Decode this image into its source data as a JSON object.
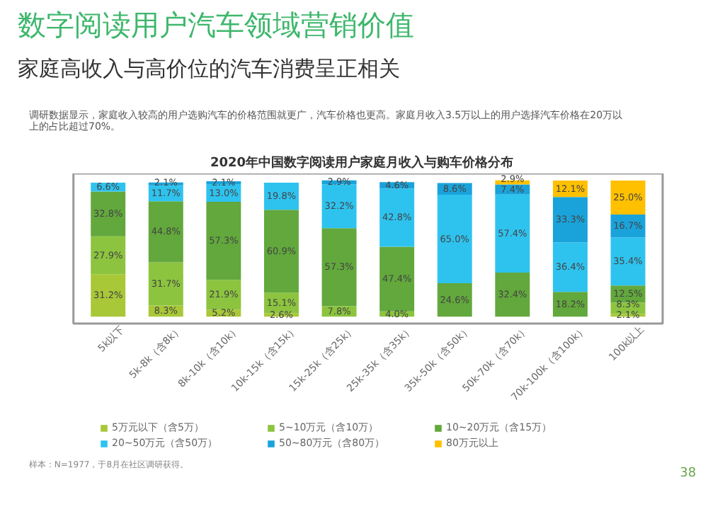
{
  "chart_data": {
    "type": "bar",
    "stacked": true,
    "title": "2020年中国数字阅读用户家庭月收入与购车价格分布",
    "annotations": [
      "数字阅读用户汽车领域营销价值",
      "家庭高收入与高价位的汽车消费呈正相关",
      "调研数据显示，家庭收入较高的用户选购汽车的价格范围就更广，汽车价格也更高。家庭月收入3.5万以上的用户选择汽车价格在20万以上的占比超过70%。",
      "样本：N=1977，于8月在社区调研获得。",
      "38"
    ],
    "categories": [
      "5k以下",
      "5k-8k（含8k）",
      "8k-10k（含10k）",
      "10k-15k（含15k）",
      "15k-25k（含25k）",
      "25k-35k（含35k）",
      "35k-50k（含50k）",
      "50k-70k（含70k）",
      "70k-100k（含100k）",
      "100k以上"
    ],
    "series": [
      {
        "name": "5万元以下（含5万）",
        "color": "#a8c838",
        "values": [
          31.2,
          8.3,
          5.2,
          2.6,
          null,
          null,
          null,
          null,
          null,
          2.1
        ],
        "value_labels": [
          "31.2%",
          "8.3%",
          "5.2%",
          "2.6%",
          null,
          null,
          null,
          null,
          null,
          "2.1%"
        ]
      },
      {
        "name": "5~10万元（含10万）",
        "color": "#8cc43f",
        "values": [
          27.9,
          31.7,
          21.9,
          15.1,
          7.8,
          4.0,
          null,
          null,
          null,
          8.3
        ],
        "value_labels": [
          "27.9%",
          "31.7%",
          "21.9%",
          "15.1%",
          "7.8%",
          "4.0%",
          null,
          null,
          null,
          "8.3%"
        ]
      },
      {
        "name": "10~20万元（含15万）",
        "color": "#62a83c",
        "values": [
          32.8,
          44.8,
          57.3,
          60.9,
          57.3,
          47.4,
          24.6,
          32.4,
          18.2,
          12.5
        ],
        "value_labels": [
          "32.8%",
          "44.8%",
          "57.3%",
          "60.9%",
          "57.3%",
          "47.4%",
          "24.6%",
          "32.4%",
          "18.2%",
          "12.5%"
        ]
      },
      {
        "name": "20~50万元（含50万）",
        "color": "#2ec3ef",
        "values": [
          6.6,
          11.7,
          13.0,
          19.8,
          32.2,
          42.8,
          65.0,
          57.4,
          36.4,
          35.4
        ],
        "value_labels": [
          "6.6%",
          "11.7%",
          "13.0%",
          "19.8%",
          "32.2%",
          "42.8%",
          "65.0%",
          "57.4%",
          "36.4%",
          "35.4%"
        ]
      },
      {
        "name": "50~80万元（含80万）",
        "color": "#1aa3db",
        "values": [
          null,
          2.1,
          2.1,
          null,
          2.9,
          4.6,
          8.6,
          7.4,
          33.3,
          16.7
        ],
        "value_labels": [
          null,
          "2.1%",
          "2.1%",
          null,
          "2.9%",
          "4.6%",
          "8.6%",
          "7.4%",
          "33.3%",
          "16.7%"
        ]
      },
      {
        "name": "80万元以上",
        "color": "#ffc000",
        "values": [
          null,
          null,
          null,
          null,
          null,
          null,
          null,
          2.9,
          12.1,
          25.0
        ],
        "value_labels": [
          null,
          null,
          null,
          null,
          null,
          null,
          null,
          "2.9%",
          "12.1%",
          "25.0%"
        ]
      }
    ],
    "tick_labels": "x",
    "legend": "bottom"
  }
}
